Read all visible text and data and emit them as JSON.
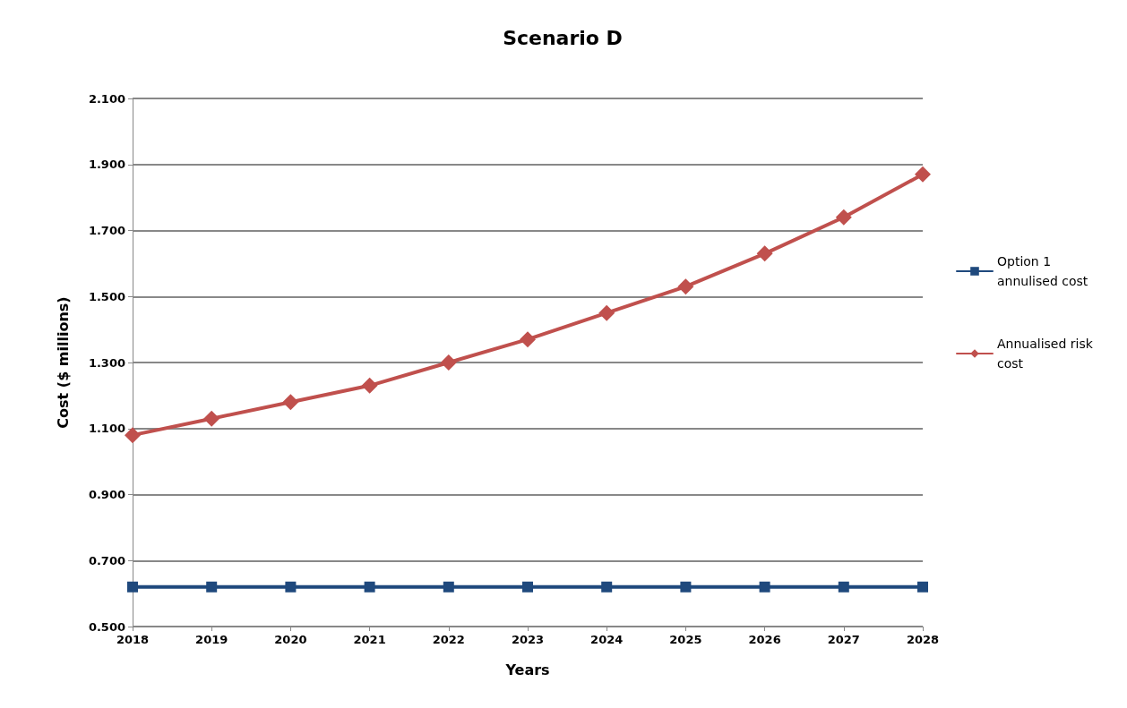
{
  "chart_data": {
    "type": "line",
    "title": "Scenario D",
    "xlabel": "Years",
    "ylabel": "Cost ($ millions)",
    "categories": [
      "2018",
      "2019",
      "2020",
      "2021",
      "2022",
      "2023",
      "2024",
      "2025",
      "2026",
      "2027",
      "2028"
    ],
    "series": [
      {
        "name": "Option 1 annulised cost",
        "color": "#1f497d",
        "marker": "square",
        "values": [
          0.62,
          0.62,
          0.62,
          0.62,
          0.62,
          0.62,
          0.62,
          0.62,
          0.62,
          0.62,
          0.62
        ]
      },
      {
        "name": "Annualised risk cost",
        "color": "#c0504d",
        "marker": "diamond",
        "values": [
          1.08,
          1.13,
          1.18,
          1.23,
          1.3,
          1.37,
          1.45,
          1.53,
          1.63,
          1.74,
          1.87
        ]
      }
    ],
    "ylim": [
      0.5,
      2.1
    ],
    "yticks": [
      {
        "value": 0.5,
        "label": "0.500"
      },
      {
        "value": 0.7,
        "label": "0.700"
      },
      {
        "value": 0.9,
        "label": "0.900"
      },
      {
        "value": 1.1,
        "label": "1.100"
      },
      {
        "value": 1.3,
        "label": "1.300"
      },
      {
        "value": 1.5,
        "label": "1.500"
      },
      {
        "value": 1.7,
        "label": "1.700"
      },
      {
        "value": 1.9,
        "label": "1.900"
      },
      {
        "value": 2.1,
        "label": "2.100"
      }
    ],
    "grid": "y",
    "legend": "right",
    "line_style": "solid"
  }
}
